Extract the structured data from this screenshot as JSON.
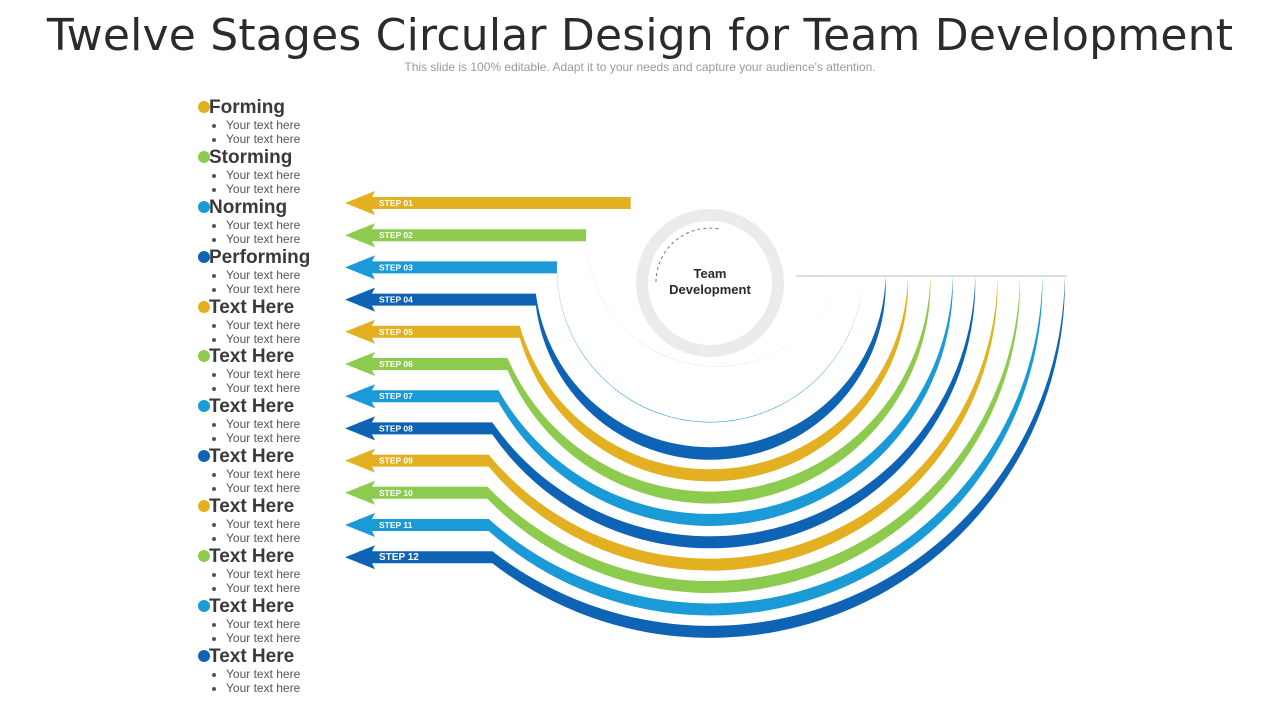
{
  "header": {
    "title": "Twelve Stages Circular Design for Team Development",
    "subtitle": "This slide is 100% editable. Adapt it to your needs and capture your audience's attention."
  },
  "center": {
    "line1": "Team",
    "line2": "Development"
  },
  "colors": {
    "yellow": "#E3B021",
    "green": "#8CCB4E",
    "light_blue": "#1A9AD6",
    "dark_blue": "#0E63B5",
    "ring_gray": "#EBEBEB"
  },
  "stages": [
    {
      "step": "STEP 01",
      "heading": "Forming",
      "bullets": [
        "Your text here",
        "Your text here"
      ],
      "color": "#E3B021"
    },
    {
      "step": "STEP 02",
      "heading": "Storming",
      "bullets": [
        "Your text here",
        "Your text here"
      ],
      "color": "#8CCB4E"
    },
    {
      "step": "STEP 03",
      "heading": "Norming",
      "bullets": [
        "Your text here",
        "Your text here"
      ],
      "color": "#1A9AD6"
    },
    {
      "step": "STEP 04",
      "heading": "Performing",
      "bullets": [
        "Your text here",
        "Your text here"
      ],
      "color": "#0E63B5"
    },
    {
      "step": "STEP 05",
      "heading": "Text Here",
      "bullets": [
        "Your text here",
        "Your text here"
      ],
      "color": "#E3B021"
    },
    {
      "step": "STEP 06",
      "heading": "Text Here",
      "bullets": [
        "Your text here",
        "Your text here"
      ],
      "color": "#8CCB4E"
    },
    {
      "step": "STEP 07",
      "heading": "Text Here",
      "bullets": [
        "Your text here",
        "Your text here"
      ],
      "color": "#1A9AD6"
    },
    {
      "step": "STEP 08",
      "heading": "Text Here",
      "bullets": [
        "Your text here",
        "Your text here"
      ],
      "color": "#0E63B5"
    },
    {
      "step": "STEP 09",
      "heading": "Text Here",
      "bullets": [
        "Your text here",
        "Your text here"
      ],
      "color": "#E3B021"
    },
    {
      "step": "STEP 10",
      "heading": "Text Here",
      "bullets": [
        "Your text here",
        "Your text here"
      ],
      "color": "#8CCB4E"
    },
    {
      "step": "STEP 11",
      "heading": "Text Here",
      "bullets": [
        "Your text here",
        "Your text here"
      ],
      "color": "#1A9AD6"
    },
    {
      "step": "STEP 12",
      "heading": "Text Here",
      "bullets": [
        "Your text here",
        "Your text here"
      ],
      "color": "#0E63B5"
    }
  ]
}
